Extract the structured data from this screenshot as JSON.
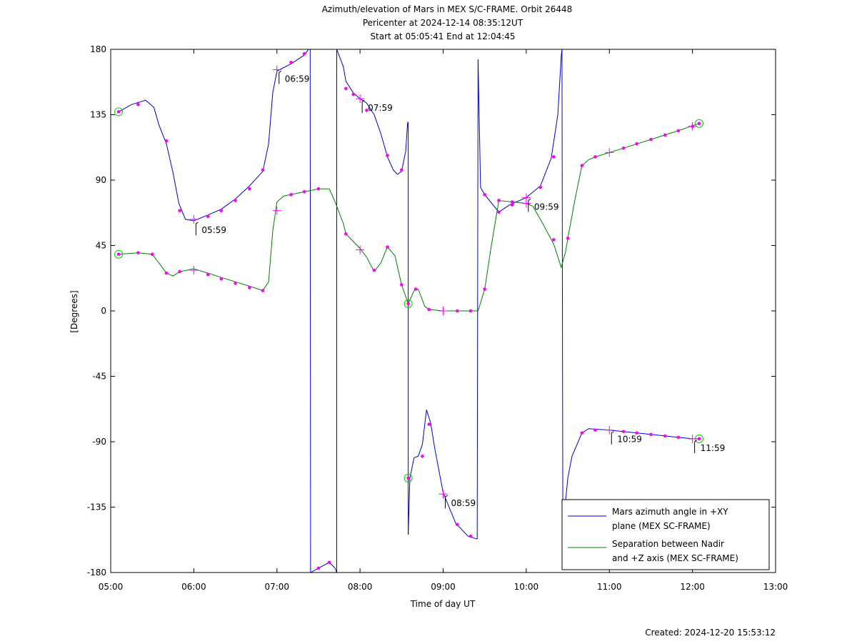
{
  "chart_data": {
    "type": "line",
    "title": "Azimuth/elevation of Mars in MEX S/C-FRAME.  Orbit 26448",
    "subtitle1": "Pericenter at 2024-12-14 08:35:12UT",
    "subtitle2": "Start at 05:05:41 End at 12:04:45",
    "xlabel": "Time of day UT",
    "ylabel": "[Degrees]",
    "xlim": [
      5.0,
      13.0
    ],
    "ylim": [
      -180,
      180
    ],
    "xticks": [
      5,
      6,
      7,
      8,
      9,
      10,
      11,
      12,
      13
    ],
    "xtick_labels": [
      "05:00",
      "06:00",
      "07:00",
      "08:00",
      "09:00",
      "10:00",
      "11:00",
      "12:00",
      "13:00"
    ],
    "yticks": [
      180,
      135,
      90,
      45,
      0,
      -45,
      -90,
      -135,
      -180
    ],
    "ytick_labels": [
      "180",
      "135",
      "90",
      "45",
      "0",
      "-45",
      "-90",
      "-135",
      "-180"
    ],
    "legend_position": "bottom-right",
    "series": [
      {
        "name": "Mars azimuth angle in +XY plane (MEX SC-FRAME)",
        "legend_line1": "Mars azimuth angle in +XY",
        "legend_line2": "plane (MEX SC-FRAME)",
        "color": "#0000cc",
        "segments": [
          [
            [
              5.095,
              137
            ],
            [
              5.25,
              142
            ],
            [
              5.42,
              145
            ],
            [
              5.52,
              140
            ],
            [
              5.58,
              128
            ],
            [
              5.67,
              115
            ],
            [
              5.75,
              95
            ],
            [
              5.82,
              74
            ],
            [
              5.9,
              63
            ],
            [
              6.0,
              62
            ],
            [
              6.17,
              66
            ],
            [
              6.33,
              70
            ],
            [
              6.5,
              77
            ],
            [
              6.67,
              86
            ],
            [
              6.83,
              96
            ],
            [
              6.9,
              115
            ],
            [
              6.95,
              150
            ],
            [
              7.0,
              165
            ],
            [
              7.17,
              170
            ],
            [
              7.33,
              176
            ],
            [
              7.38,
              180
            ]
          ],
          [
            [
              7.4,
              180
            ],
            [
              7.405,
              -180
            ]
          ],
          [
            [
              7.405,
              -180
            ],
            [
              7.5,
              -177
            ],
            [
              7.63,
              -173
            ],
            [
              7.7,
              -177
            ],
            [
              7.72,
              -180
            ]
          ],
          [
            [
              7.72,
              -180
            ],
            [
              7.72,
              180
            ]
          ],
          [
            [
              7.72,
              180
            ],
            [
              7.8,
              168
            ],
            [
              7.83,
              158
            ],
            [
              7.92,
              150
            ],
            [
              8.0,
              146
            ],
            [
              8.08,
              143
            ],
            [
              8.17,
              135
            ],
            [
              8.25,
              122
            ],
            [
              8.33,
              106
            ],
            [
              8.4,
              97
            ],
            [
              8.45,
              94
            ],
            [
              8.5,
              96
            ],
            [
              8.55,
              110
            ],
            [
              8.57,
              128
            ],
            [
              8.575,
              130
            ]
          ],
          [
            [
              8.58,
              130
            ],
            [
              8.58,
              -154
            ]
          ],
          [
            [
              8.58,
              -154
            ],
            [
              8.6,
              -115
            ],
            [
              8.65,
              -101
            ],
            [
              8.7,
              -100
            ],
            [
              8.75,
              -92
            ],
            [
              8.8,
              -68
            ],
            [
              8.85,
              -77
            ],
            [
              8.9,
              -95
            ],
            [
              9.0,
              -125
            ],
            [
              9.15,
              -146
            ],
            [
              9.3,
              -155
            ],
            [
              9.41,
              -157
            ]
          ],
          [
            [
              9.41,
              -157
            ],
            [
              9.42,
              173
            ]
          ],
          [
            [
              9.42,
              173
            ],
            [
              9.45,
              85
            ],
            [
              9.5,
              80
            ],
            [
              9.67,
              68
            ],
            [
              9.8,
              73
            ],
            [
              10.0,
              78
            ],
            [
              10.17,
              86
            ],
            [
              10.3,
              105
            ],
            [
              10.38,
              135
            ],
            [
              10.42,
              175
            ],
            [
              10.43,
              180
            ]
          ],
          [
            [
              10.43,
              180
            ],
            [
              10.44,
              -150
            ]
          ],
          [
            [
              10.44,
              -150
            ],
            [
              10.5,
              -115
            ],
            [
              10.55,
              -100
            ],
            [
              10.67,
              -84
            ],
            [
              10.75,
              -81
            ],
            [
              11.0,
              -82
            ],
            [
              11.5,
              -85
            ],
            [
              11.83,
              -87
            ],
            [
              12.0,
              -88
            ],
            [
              12.08,
              -88
            ]
          ]
        ],
        "markers_dot": [
          [
            5.33,
            142
          ],
          [
            5.67,
            117
          ],
          [
            5.83,
            69
          ],
          [
            6.17,
            65
          ],
          [
            6.33,
            69
          ],
          [
            6.5,
            76
          ],
          [
            6.67,
            84
          ],
          [
            6.83,
            97
          ],
          [
            7.17,
            171
          ],
          [
            7.33,
            177
          ],
          [
            7.5,
            -177
          ],
          [
            7.63,
            -173
          ],
          [
            7.83,
            153
          ],
          [
            7.92,
            149
          ],
          [
            8.08,
            138
          ],
          [
            8.33,
            107
          ],
          [
            8.5,
            97
          ],
          [
            8.75,
            -100
          ],
          [
            8.83,
            -78
          ],
          [
            9.17,
            -147
          ],
          [
            9.33,
            -155
          ],
          [
            9.5,
            80
          ],
          [
            9.67,
            68
          ],
          [
            9.83,
            73
          ],
          [
            10.17,
            85
          ],
          [
            10.33,
            106
          ],
          [
            10.67,
            -84
          ],
          [
            10.83,
            -82
          ],
          [
            11.17,
            -83
          ],
          [
            11.33,
            -84
          ],
          [
            11.5,
            -85
          ],
          [
            11.67,
            -86
          ],
          [
            11.83,
            -87
          ]
        ],
        "markers_plus": [
          [
            6.0,
            63
          ],
          [
            7.0,
            166
          ],
          [
            8.0,
            146
          ],
          [
            9.0,
            -126
          ],
          [
            10.0,
            78
          ],
          [
            11.0,
            -82
          ],
          [
            12.0,
            -88
          ]
        ],
        "markers_circle": [
          [
            5.095,
            137
          ],
          [
            8.58,
            -115
          ],
          [
            12.08,
            -88
          ]
        ]
      },
      {
        "name": "Separation between Nadir and +Z axis (MEX SC-FRAME)",
        "legend_line1": "Separation between Nadir",
        "legend_line2": "and +Z axis (MEX SC-FRAME)",
        "color": "#008000",
        "segments": [
          [
            [
              5.095,
              39
            ],
            [
              5.33,
              40
            ],
            [
              5.5,
              39
            ],
            [
              5.58,
              33
            ],
            [
              5.67,
              26
            ],
            [
              5.75,
              24
            ],
            [
              5.83,
              27
            ],
            [
              6.0,
              29
            ],
            [
              6.17,
              26
            ],
            [
              6.33,
              23
            ],
            [
              6.5,
              20
            ],
            [
              6.67,
              17
            ],
            [
              6.83,
              14
            ],
            [
              6.9,
              20
            ],
            [
              6.95,
              55
            ],
            [
              7.0,
              75
            ],
            [
              7.08,
              79
            ],
            [
              7.17,
              80
            ],
            [
              7.33,
              82
            ],
            [
              7.5,
              84
            ],
            [
              7.63,
              84
            ],
            [
              7.7,
              75
            ],
            [
              7.8,
              60
            ],
            [
              7.83,
              53
            ],
            [
              8.0,
              43
            ],
            [
              8.08,
              37
            ],
            [
              8.17,
              27
            ],
            [
              8.25,
              33
            ],
            [
              8.33,
              44
            ],
            [
              8.42,
              38
            ],
            [
              8.5,
              18
            ],
            [
              8.58,
              5
            ],
            [
              8.65,
              14
            ],
            [
              8.7,
              15
            ],
            [
              8.78,
              3
            ],
            [
              8.83,
              1
            ],
            [
              9.0,
              0
            ],
            [
              9.17,
              0
            ],
            [
              9.33,
              0
            ],
            [
              9.42,
              0
            ],
            [
              9.5,
              15
            ],
            [
              9.58,
              45
            ],
            [
              9.67,
              76
            ],
            [
              9.83,
              75
            ],
            [
              10.0,
              74
            ],
            [
              10.08,
              72
            ],
            [
              10.2,
              60
            ],
            [
              10.33,
              46
            ],
            [
              10.42,
              30
            ],
            [
              10.47,
              40
            ],
            [
              10.5,
              50
            ],
            [
              10.58,
              75
            ],
            [
              10.67,
              100
            ],
            [
              10.75,
              104
            ],
            [
              10.83,
              106
            ],
            [
              11.0,
              109
            ],
            [
              11.17,
              112
            ],
            [
              11.5,
              118
            ],
            [
              11.83,
              124
            ],
            [
              12.08,
              129
            ]
          ]
        ],
        "markers_dot": [
          [
            5.33,
            40
          ],
          [
            5.5,
            39
          ],
          [
            5.67,
            26
          ],
          [
            5.83,
            27
          ],
          [
            6.17,
            25
          ],
          [
            6.33,
            22
          ],
          [
            6.5,
            19
          ],
          [
            6.67,
            16
          ],
          [
            6.83,
            14
          ],
          [
            7.17,
            80
          ],
          [
            7.33,
            82
          ],
          [
            7.5,
            84
          ],
          [
            7.83,
            53
          ],
          [
            8.17,
            28
          ],
          [
            8.33,
            44
          ],
          [
            8.5,
            18
          ],
          [
            8.67,
            15
          ],
          [
            8.83,
            1
          ],
          [
            9.17,
            0
          ],
          [
            9.33,
            0
          ],
          [
            9.5,
            15
          ],
          [
            9.67,
            76
          ],
          [
            9.83,
            75
          ],
          [
            10.33,
            49
          ],
          [
            10.5,
            50
          ],
          [
            10.67,
            100
          ],
          [
            10.83,
            106
          ],
          [
            11.17,
            112
          ],
          [
            11.33,
            115
          ],
          [
            11.5,
            118
          ],
          [
            11.67,
            121
          ],
          [
            11.83,
            124
          ],
          [
            12.0,
            127
          ]
        ],
        "markers_plus": [
          [
            6.0,
            28
          ],
          [
            7.0,
            69
          ],
          [
            8.0,
            42
          ],
          [
            9.0,
            0
          ],
          [
            10.0,
            74
          ],
          [
            11.0,
            109
          ],
          [
            12.0,
            127
          ]
        ],
        "markers_circle": [
          [
            5.095,
            39
          ],
          [
            8.58,
            5
          ],
          [
            12.08,
            129
          ]
        ]
      }
    ],
    "annotations": [
      {
        "text": "05:59",
        "x": 6.0,
        "y": 62
      },
      {
        "text": "06:59",
        "x": 7.0,
        "y": 166
      },
      {
        "text": "07:59",
        "x": 8.0,
        "y": 146
      },
      {
        "text": "08:59",
        "x": 9.0,
        "y": -126
      },
      {
        "text": "09:59",
        "x": 10.0,
        "y": 78
      },
      {
        "text": "10:59",
        "x": 11.0,
        "y": -82
      },
      {
        "text": "11:59",
        "x": 12.0,
        "y": -88
      }
    ],
    "footer": "Created: 2024-12-20 15:53:12"
  }
}
